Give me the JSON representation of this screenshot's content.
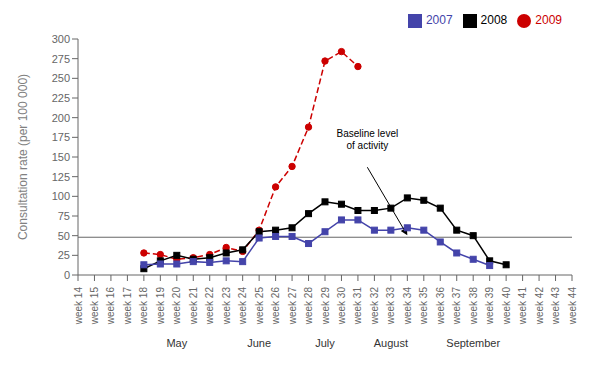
{
  "chart_data": {
    "type": "line",
    "ylabel": "Consultation rate (per 100 000)",
    "categories": [
      "week 14",
      "week 15",
      "week 16",
      "week 17",
      "week 18",
      "week 19",
      "week 20",
      "week 21",
      "week 22",
      "week 23",
      "week 24",
      "week 25",
      "week 26",
      "week 27",
      "week 28",
      "week 29",
      "week 30",
      "week 31",
      "week 32",
      "week 33",
      "week 34",
      "week 35",
      "week 36",
      "week 37",
      "week 38",
      "week 39",
      "week 40",
      "week 41",
      "week 42",
      "week 43",
      "week 44"
    ],
    "series": [
      {
        "name": "2009",
        "color": "#cc0000",
        "marker": "circle",
        "line_style": "dashed",
        "values": [
          null,
          null,
          null,
          null,
          28,
          26,
          20,
          22,
          26,
          35,
          30,
          57,
          112,
          138,
          188,
          272,
          284,
          265,
          null,
          null,
          null,
          null,
          null,
          null,
          null,
          null,
          null,
          null,
          null,
          null,
          null
        ]
      },
      {
        "name": "2008",
        "color": "#000000",
        "marker": "square",
        "line_style": "solid",
        "values": [
          null,
          null,
          null,
          null,
          8,
          18,
          25,
          20,
          22,
          28,
          32,
          55,
          57,
          60,
          78,
          93,
          90,
          82,
          82,
          85,
          98,
          95,
          85,
          57,
          50,
          18,
          13,
          null,
          null,
          null,
          null
        ]
      },
      {
        "name": "2007",
        "color": "#4444aa",
        "marker": "square",
        "line_style": "solid",
        "values": [
          null,
          null,
          null,
          null,
          13,
          14,
          14,
          17,
          16,
          18,
          17,
          47,
          49,
          49,
          40,
          55,
          70,
          70,
          57,
          57,
          60,
          57,
          42,
          28,
          20,
          12,
          null,
          null,
          null,
          null,
          null
        ]
      }
    ],
    "reference_lines": [
      {
        "y": 48,
        "color": "#666666"
      }
    ],
    "annotations": [
      {
        "text": "Baseline level\nof activity",
        "x": "week 34",
        "y": 48
      }
    ],
    "month_labels": [
      {
        "label": "May",
        "category": "week 20"
      },
      {
        "label": "June",
        "category": "week 25"
      },
      {
        "label": "July",
        "category": "week 29"
      },
      {
        "label": "August",
        "category": "week 33"
      },
      {
        "label": "September",
        "category": "week 38"
      }
    ],
    "ylim": [
      0,
      300
    ],
    "yticks": [
      0,
      25,
      50,
      75,
      100,
      125,
      150,
      175,
      200,
      225,
      250,
      275,
      300
    ],
    "grid": false,
    "legend": "upper right"
  }
}
